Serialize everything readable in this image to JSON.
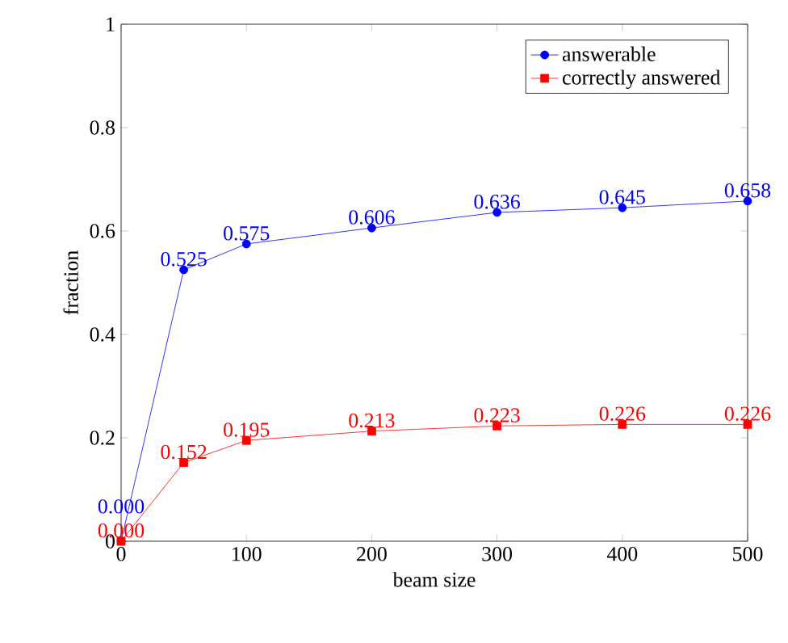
{
  "chart_data": {
    "type": "line",
    "xlabel": "beam size",
    "ylabel": "fraction",
    "x": [
      0,
      50,
      100,
      200,
      300,
      400,
      500
    ],
    "series": [
      {
        "name": "answerable",
        "color": "#0000ff",
        "marker": "circle",
        "values": [
          0,
          0.525,
          0.575,
          0.606,
          0.636,
          0.645,
          0.658
        ],
        "value_labels": [
          "0.000",
          "0.525",
          "0.575",
          "0.606",
          "0.636",
          "0.645",
          "0.658"
        ]
      },
      {
        "name": "correctly answered",
        "color": "#ff0000",
        "marker": "square",
        "values": [
          0,
          0.152,
          0.195,
          0.213,
          0.223,
          0.226,
          0.226
        ],
        "value_labels": [
          "0.000",
          "0.152",
          "0.195",
          "0.213",
          "0.223",
          "0.226",
          "0.226"
        ]
      }
    ],
    "xlim": [
      0,
      500
    ],
    "xticks": [
      0,
      100,
      200,
      300,
      400,
      500
    ],
    "ylim": [
      0,
      1
    ],
    "yticks": [
      0,
      0.2,
      0.4,
      0.6,
      0.8,
      1
    ],
    "legend": "top right",
    "line_style": "solid",
    "grid": false
  }
}
